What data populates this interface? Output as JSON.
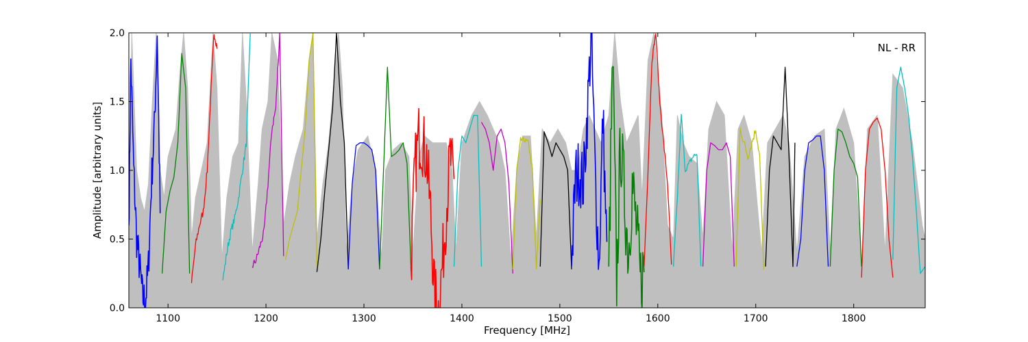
{
  "chart_data": {
    "type": "line",
    "title": "",
    "xlabel": "Frequency [MHz]",
    "ylabel": "Amplitude [arbitrary units]",
    "annotation": "NL - RR",
    "xlim": [
      1060,
      1873
    ],
    "ylim": [
      0.0,
      2.0
    ],
    "xticks": [
      1100,
      1200,
      1300,
      1400,
      1500,
      1600,
      1700,
      1800
    ],
    "xtick_labels": [
      "1100",
      "1200",
      "1300",
      "1400",
      "1500",
      "1600",
      "1700",
      "1800"
    ],
    "yticks": [
      0.0,
      0.5,
      1.0,
      1.5,
      2.0
    ],
    "ytick_labels": [
      "0.0",
      "0.5",
      "1.0",
      "1.5",
      "2.0"
    ],
    "grid": false,
    "background_envelope": {
      "color": "#bfbfbf",
      "points": [
        [
          1060,
          0.6
        ],
        [
          1063,
          2.0
        ],
        [
          1068,
          1.0
        ],
        [
          1072,
          0.8
        ],
        [
          1076,
          0.7
        ],
        [
          1080,
          0.9
        ],
        [
          1084,
          1.5
        ],
        [
          1088,
          2.0
        ],
        [
          1092,
          1.0
        ],
        [
          1096,
          0.8
        ],
        [
          1100,
          1.1
        ],
        [
          1104,
          1.2
        ],
        [
          1108,
          1.3
        ],
        [
          1112,
          1.7
        ],
        [
          1116,
          2.0
        ],
        [
          1120,
          1.6
        ],
        [
          1124,
          0.5
        ],
        [
          1128,
          0.8
        ],
        [
          1134,
          1.0
        ],
        [
          1140,
          1.2
        ],
        [
          1146,
          2.0
        ],
        [
          1150,
          1.6
        ],
        [
          1155,
          0.35
        ],
        [
          1160,
          0.8
        ],
        [
          1166,
          1.1
        ],
        [
          1172,
          1.2
        ],
        [
          1176,
          2.0
        ],
        [
          1180,
          1.5
        ],
        [
          1186,
          0.4
        ],
        [
          1192,
          0.9
        ],
        [
          1196,
          1.3
        ],
        [
          1202,
          1.5
        ],
        [
          1206,
          2.0
        ],
        [
          1212,
          1.8
        ],
        [
          1218,
          0.6
        ],
        [
          1224,
          0.9
        ],
        [
          1230,
          1.1
        ],
        [
          1238,
          1.3
        ],
        [
          1244,
          1.8
        ],
        [
          1248,
          2.0
        ],
        [
          1252,
          0.5
        ],
        [
          1258,
          0.9
        ],
        [
          1264,
          1.2
        ],
        [
          1270,
          1.7
        ],
        [
          1274,
          2.0
        ],
        [
          1278,
          1.6
        ],
        [
          1282,
          0.4
        ],
        [
          1288,
          0.9
        ],
        [
          1294,
          1.15
        ],
        [
          1304,
          1.25
        ],
        [
          1312,
          1.0
        ],
        [
          1318,
          0.35
        ],
        [
          1322,
          1.0
        ],
        [
          1330,
          1.15
        ],
        [
          1338,
          1.2
        ],
        [
          1346,
          1.1
        ],
        [
          1350,
          0.4
        ],
        [
          1356,
          1.1
        ],
        [
          1362,
          1.25
        ],
        [
          1370,
          1.2
        ],
        [
          1378,
          1.2
        ],
        [
          1384,
          1.2
        ],
        [
          1390,
          1.0
        ],
        [
          1394,
          0.4
        ],
        [
          1400,
          1.2
        ],
        [
          1410,
          1.4
        ],
        [
          1418,
          1.5
        ],
        [
          1426,
          1.4
        ],
        [
          1432,
          1.3
        ],
        [
          1438,
          1.2
        ],
        [
          1444,
          1.0
        ],
        [
          1450,
          0.35
        ],
        [
          1456,
          1.0
        ],
        [
          1462,
          1.25
        ],
        [
          1470,
          1.25
        ],
        [
          1476,
          0.5
        ],
        [
          1482,
          1.3
        ],
        [
          1490,
          1.2
        ],
        [
          1498,
          1.3
        ],
        [
          1506,
          1.2
        ],
        [
          1512,
          1.0
        ],
        [
          1518,
          1.0
        ],
        [
          1524,
          1.3
        ],
        [
          1530,
          1.4
        ],
        [
          1536,
          1.3
        ],
        [
          1542,
          1.2
        ],
        [
          1550,
          1.4
        ],
        [
          1556,
          2.0
        ],
        [
          1562,
          1.5
        ],
        [
          1568,
          1.2
        ],
        [
          1574,
          1.3
        ],
        [
          1580,
          1.4
        ],
        [
          1584,
          0.8
        ],
        [
          1590,
          1.8
        ],
        [
          1596,
          2.0
        ],
        [
          1604,
          1.4
        ],
        [
          1610,
          0.6
        ],
        [
          1616,
          0.5
        ],
        [
          1620,
          1.4
        ],
        [
          1626,
          1.2
        ],
        [
          1632,
          1.1
        ],
        [
          1640,
          1.05
        ],
        [
          1646,
          0.5
        ],
        [
          1652,
          1.3
        ],
        [
          1660,
          1.5
        ],
        [
          1668,
          1.4
        ],
        [
          1676,
          0.4
        ],
        [
          1682,
          1.3
        ],
        [
          1688,
          1.4
        ],
        [
          1696,
          1.2
        ],
        [
          1706,
          0.4
        ],
        [
          1712,
          1.2
        ],
        [
          1720,
          1.3
        ],
        [
          1728,
          1.4
        ],
        [
          1734,
          1.2
        ],
        [
          1742,
          0.4
        ],
        [
          1750,
          1.1
        ],
        [
          1760,
          1.25
        ],
        [
          1770,
          1.3
        ],
        [
          1776,
          0.4
        ],
        [
          1782,
          1.3
        ],
        [
          1790,
          1.45
        ],
        [
          1800,
          1.2
        ],
        [
          1808,
          0.3
        ],
        [
          1814,
          1.3
        ],
        [
          1824,
          1.4
        ],
        [
          1832,
          0.4
        ],
        [
          1840,
          1.7
        ],
        [
          1850,
          1.6
        ],
        [
          1860,
          1.2
        ],
        [
          1870,
          0.6
        ],
        [
          1873,
          0.5
        ]
      ]
    },
    "series_colors": [
      "#0000ff",
      "#008000",
      "#ff0000",
      "#00bfbf",
      "#bf00bf",
      "#bfbf00",
      "#000000"
    ],
    "segments": [
      {
        "x": [
          1060,
          1062,
          1065,
          1068,
          1071,
          1074,
          1077,
          1080,
          1083,
          1086,
          1089,
          1092
        ],
        "y": [
          0.6,
          1.8,
          1.0,
          0.5,
          0.3,
          0.08,
          0.05,
          0.3,
          0.9,
          1.3,
          2.0,
          0.7
        ],
        "noise": 0.15
      },
      {
        "x": [
          1094,
          1098,
          1102,
          1106,
          1110,
          1114,
          1118,
          1122
        ],
        "y": [
          0.25,
          0.7,
          0.85,
          0.95,
          1.2,
          1.85,
          1.6,
          0.25
        ],
        "noise": 0.0
      },
      {
        "x": [
          1124,
          1128,
          1132,
          1136,
          1140,
          1144,
          1147,
          1150
        ],
        "y": [
          0.18,
          0.45,
          0.6,
          0.7,
          1.0,
          1.6,
          2.0,
          1.9
        ],
        "noise": 0.03
      },
      {
        "x": [
          1156,
          1160,
          1164,
          1168,
          1172,
          1176,
          1180,
          1184
        ],
        "y": [
          0.2,
          0.4,
          0.55,
          0.65,
          0.8,
          1.0,
          1.2,
          2.0
        ],
        "noise": 0.03
      },
      {
        "x": [
          1186,
          1190,
          1194,
          1198,
          1202,
          1206,
          1210,
          1214,
          1218
        ],
        "y": [
          0.3,
          0.35,
          0.45,
          0.55,
          0.9,
          1.3,
          1.45,
          2.0,
          0.38
        ],
        "noise": 0.03
      },
      {
        "x": [
          1220,
          1224,
          1228,
          1232,
          1236,
          1240,
          1244,
          1248,
          1252
        ],
        "y": [
          0.35,
          0.5,
          0.6,
          0.7,
          1.0,
          1.3,
          1.8,
          2.0,
          0.3
        ],
        "noise": 0.0
      },
      {
        "x": [
          1252,
          1256,
          1260,
          1264,
          1268,
          1272,
          1276,
          1280,
          1284
        ],
        "y": [
          0.26,
          0.5,
          0.85,
          1.15,
          1.45,
          2.0,
          1.5,
          1.2,
          0.28
        ],
        "noise": 0.0
      },
      {
        "x": [
          1284,
          1288,
          1292,
          1296,
          1300,
          1304,
          1308,
          1312,
          1316
        ],
        "y": [
          0.28,
          0.9,
          1.18,
          1.2,
          1.2,
          1.18,
          1.15,
          1.0,
          0.28
        ],
        "noise": 0.0
      },
      {
        "x": [
          1316,
          1320,
          1324,
          1328,
          1332,
          1336,
          1340,
          1344,
          1348
        ],
        "y": [
          0.28,
          1.0,
          1.75,
          1.1,
          1.12,
          1.15,
          1.2,
          1.05,
          0.3
        ],
        "noise": 0.0
      },
      {
        "x": [
          1348,
          1352,
          1356,
          1360,
          1364,
          1368,
          1372,
          1376,
          1380,
          1384,
          1388,
          1392
        ],
        "y": [
          0.3,
          1.0,
          1.25,
          1.2,
          1.1,
          0.7,
          0.1,
          0.0,
          0.3,
          0.7,
          1.1,
          0.9
        ],
        "noise": 0.25
      },
      {
        "x": [
          1392,
          1396,
          1400,
          1404,
          1408,
          1412,
          1416,
          1420
        ],
        "y": [
          0.3,
          1.0,
          1.25,
          1.2,
          1.3,
          1.4,
          1.4,
          0.3
        ],
        "noise": 0.0
      },
      {
        "x": [
          1420,
          1424,
          1428,
          1432,
          1436,
          1440,
          1444,
          1448,
          1452
        ],
        "y": [
          1.35,
          1.3,
          1.2,
          1.0,
          1.25,
          1.3,
          1.2,
          0.9,
          0.25
        ],
        "noise": 0.0
      },
      {
        "x": [
          1452,
          1456,
          1460,
          1464,
          1468,
          1472,
          1476,
          1480
        ],
        "y": [
          0.28,
          1.0,
          1.22,
          1.22,
          1.2,
          1.0,
          0.28,
          0.8
        ],
        "noise": 0.02
      },
      {
        "x": [
          1480,
          1484,
          1488,
          1492,
          1496,
          1500,
          1504,
          1508,
          1512
        ],
        "y": [
          0.3,
          1.28,
          1.2,
          1.1,
          1.2,
          1.15,
          1.1,
          1.0,
          0.28
        ],
        "noise": 0.0
      },
      {
        "x": [
          1512,
          1516,
          1520,
          1524,
          1528,
          1532,
          1536,
          1540,
          1544,
          1548
        ],
        "y": [
          0.3,
          0.95,
          1.0,
          0.9,
          1.4,
          2.0,
          1.0,
          0.3,
          1.4,
          0.4
        ],
        "noise": 0.25
      },
      {
        "x": [
          1550,
          1554,
          1558,
          1562,
          1566,
          1570,
          1574,
          1578,
          1582,
          1586
        ],
        "y": [
          0.3,
          1.8,
          0.2,
          1.2,
          0.8,
          0.4,
          0.9,
          0.6,
          0.2,
          0.3
        ],
        "noise": 0.3
      },
      {
        "x": [
          1586,
          1590,
          1594,
          1598,
          1602,
          1606,
          1610,
          1614
        ],
        "y": [
          0.3,
          1.0,
          1.8,
          2.0,
          1.5,
          1.2,
          0.9,
          0.3
        ],
        "noise": 0.02
      },
      {
        "x": [
          1616,
          1620,
          1624,
          1628,
          1632,
          1636,
          1640,
          1644
        ],
        "y": [
          0.3,
          0.8,
          1.4,
          1.0,
          1.05,
          1.1,
          1.12,
          0.3
        ],
        "noise": 0.02
      },
      {
        "x": [
          1646,
          1650,
          1654,
          1658,
          1662,
          1666,
          1670,
          1674,
          1678
        ],
        "y": [
          0.3,
          1.0,
          1.2,
          1.18,
          1.15,
          1.15,
          1.2,
          1.1,
          0.3
        ],
        "noise": 0.0
      },
      {
        "x": [
          1680,
          1684,
          1688,
          1692,
          1696,
          1700,
          1704,
          1708
        ],
        "y": [
          0.3,
          1.3,
          1.2,
          1.1,
          1.2,
          1.3,
          1.1,
          0.3
        ],
        "noise": 0.03
      },
      {
        "x": [
          1710,
          1714,
          1718,
          1722,
          1726,
          1730,
          1734,
          1738,
          1740
        ],
        "y": [
          0.3,
          1.0,
          1.25,
          1.2,
          1.15,
          1.75,
          1.1,
          0.3,
          1.2
        ],
        "noise": 0.0
      },
      {
        "x": [
          1742,
          1746,
          1750,
          1754,
          1758,
          1762,
          1766,
          1770,
          1774
        ],
        "y": [
          0.3,
          0.5,
          1.0,
          1.2,
          1.22,
          1.25,
          1.25,
          1.0,
          0.3
        ],
        "noise": 0.0
      },
      {
        "x": [
          1776,
          1780,
          1784,
          1788,
          1792,
          1796,
          1800,
          1804,
          1808
        ],
        "y": [
          0.3,
          1.0,
          1.3,
          1.28,
          1.2,
          1.1,
          1.05,
          0.95,
          0.3
        ],
        "noise": 0.0
      },
      {
        "x": [
          1808,
          1812,
          1816,
          1820,
          1824,
          1828,
          1832,
          1836,
          1840
        ],
        "y": [
          0.22,
          1.0,
          1.3,
          1.35,
          1.38,
          1.3,
          1.0,
          0.5,
          0.22
        ],
        "noise": 0.0
      },
      {
        "x": [
          1840,
          1844,
          1848,
          1852,
          1856,
          1860,
          1864,
          1868,
          1873
        ],
        "y": [
          0.35,
          1.6,
          1.75,
          1.6,
          1.4,
          1.1,
          0.7,
          0.25,
          0.3
        ],
        "noise": 0.0
      }
    ]
  }
}
